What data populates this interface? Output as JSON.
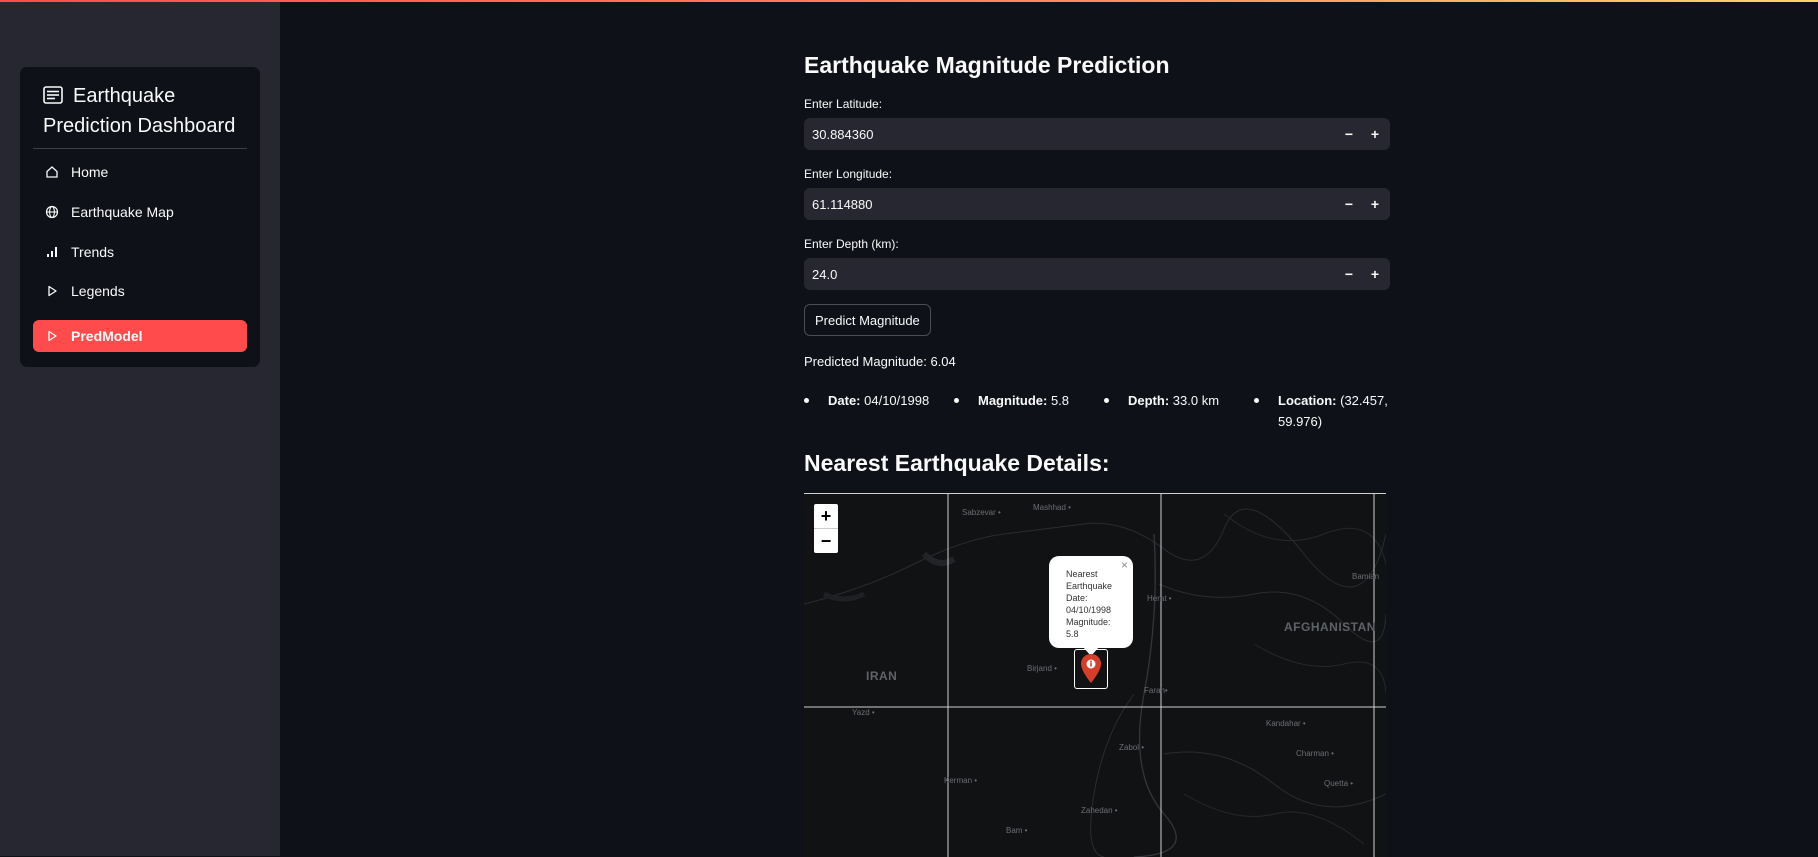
{
  "sidebar": {
    "title": "Earthquake Prediction Dashboard",
    "items": [
      {
        "label": "Home",
        "icon": "home-icon"
      },
      {
        "label": "Earthquake Map",
        "icon": "globe-icon"
      },
      {
        "label": "Trends",
        "icon": "bar-chart-icon"
      },
      {
        "label": "Legends",
        "icon": "play-icon"
      },
      {
        "label": "PredModel",
        "icon": "play-icon",
        "active": true
      }
    ]
  },
  "main": {
    "title": "Earthquake Magnitude Prediction",
    "latitude": {
      "label": "Enter Latitude:",
      "value": "30.884360"
    },
    "longitude": {
      "label": "Enter Longitude:",
      "value": "61.114880"
    },
    "depth": {
      "label": "Enter Depth (km):",
      "value": "24.0"
    },
    "stepper": {
      "minus": "−",
      "plus": "+"
    },
    "predict_button": "Predict Magnitude",
    "prediction": "Predicted Magnitude: 6.04",
    "details": [
      {
        "key": "Date:",
        "value": " 04/10/1998"
      },
      {
        "key": "Magnitude:",
        "value": " 5.8"
      },
      {
        "key": "Depth:",
        "value": " 33.0 km"
      },
      {
        "key": "Location:",
        "value": " (32.457, 59.976)"
      }
    ],
    "nearest_heading": "Nearest Earthquake Details:"
  },
  "map": {
    "zoom_in": "+",
    "zoom_out": "−",
    "popup": {
      "text": "Nearest Earthquake Date: 04/10/1998 Magnitude: 5.8",
      "close": "×"
    },
    "countries": {
      "iran": "IRAN",
      "afghanistan": "AFGHANISTAN"
    },
    "places": {
      "sabzevar": "Sabzevar •",
      "mashhad": "Mashhad •",
      "herat": "Herat •",
      "bamian": "Bamian",
      "birjand": "Birjand •",
      "farah": "Farah•",
      "yazd": "Yazd •",
      "kandahar": "Kandahar •",
      "charman": "Charman •",
      "zabol": "Zabol •",
      "kerman": "Kerman •",
      "quetta": "Quetta •",
      "zahedan": "Zahedan •",
      "bam": "Bam •"
    }
  },
  "colors": {
    "accent": "#ff4b4b",
    "background": "#0e1117",
    "sidebar": "#262730",
    "input": "#262730",
    "marker": "#d63e2a"
  }
}
